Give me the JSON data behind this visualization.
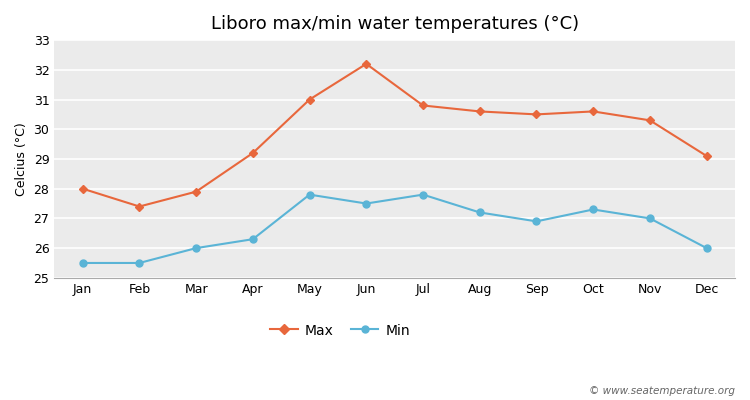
{
  "months": [
    "Jan",
    "Feb",
    "Mar",
    "Apr",
    "May",
    "Jun",
    "Jul",
    "Aug",
    "Sep",
    "Oct",
    "Nov",
    "Dec"
  ],
  "max_temps": [
    28.0,
    27.4,
    27.9,
    29.2,
    31.0,
    32.2,
    30.8,
    30.6,
    30.5,
    30.6,
    30.3,
    29.1
  ],
  "min_temps": [
    25.5,
    25.5,
    26.0,
    26.3,
    27.8,
    27.5,
    27.8,
    27.2,
    26.9,
    27.3,
    27.0,
    26.0
  ],
  "max_color": "#e8673c",
  "min_color": "#5ab4d6",
  "title": "Liboro max/min water temperatures (°C)",
  "ylabel": "Celcius (°C)",
  "ylim": [
    25,
    33
  ],
  "yticks": [
    25,
    26,
    27,
    28,
    29,
    30,
    31,
    32,
    33
  ],
  "bg_color": "#ffffff",
  "plot_bg_color": "#ebebeb",
  "grid_color": "#ffffff",
  "watermark": "© www.seatemperature.org",
  "legend_max": "Max",
  "legend_min": "Min",
  "title_fontsize": 13,
  "axis_label_fontsize": 9,
  "tick_fontsize": 9
}
